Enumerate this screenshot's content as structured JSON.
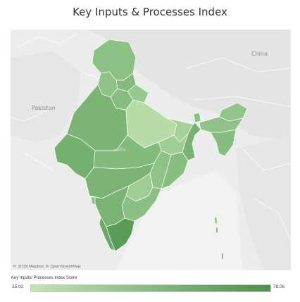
{
  "title": "Key Inputs & Processes Index",
  "map": {
    "labels": {
      "china": "China",
      "pakistan": "Pakistan",
      "india_ghost": "India"
    },
    "attribution": "© 2019 Mapbox © OpenStreetMap",
    "colors": {
      "background": "#ececec",
      "neighbor_land": "#e3e3e3",
      "border": "#ffffff",
      "water": "#f4f4f4"
    },
    "regions": [
      {
        "name": "Jammu & Kashmir",
        "score": 58,
        "color": "#8cc185"
      },
      {
        "name": "Himachal Pradesh",
        "score": 62,
        "color": "#84bb7c"
      },
      {
        "name": "Punjab",
        "score": 55,
        "color": "#8fc287"
      },
      {
        "name": "Uttarakhand",
        "score": 50,
        "color": "#97c88f"
      },
      {
        "name": "Haryana",
        "score": 60,
        "color": "#87bd80"
      },
      {
        "name": "Rajasthan",
        "score": 65,
        "color": "#7cb476"
      },
      {
        "name": "Uttar Pradesh",
        "score": 28,
        "color": "#b7dca7"
      },
      {
        "name": "Bihar",
        "score": 40,
        "color": "#a5d198"
      },
      {
        "name": "Sikkim",
        "score": 58,
        "color": "#8bc084"
      },
      {
        "name": "Arunachal Pradesh",
        "score": 52,
        "color": "#92c58a"
      },
      {
        "name": "Assam",
        "score": 55,
        "color": "#8fc287"
      },
      {
        "name": "North-East States",
        "score": 60,
        "color": "#86bc7f"
      },
      {
        "name": "West Bengal",
        "score": 66,
        "color": "#79b373"
      },
      {
        "name": "Jharkhand",
        "score": 45,
        "color": "#9fcd93"
      },
      {
        "name": "Gujarat",
        "score": 68,
        "color": "#76b070"
      },
      {
        "name": "Madhya Pradesh",
        "score": 62,
        "color": "#83bb7c"
      },
      {
        "name": "Chhattisgarh",
        "score": 55,
        "color": "#8ec286"
      },
      {
        "name": "Odisha",
        "score": 60,
        "color": "#88bd80"
      },
      {
        "name": "Maharashtra",
        "score": 66,
        "color": "#7ab374"
      },
      {
        "name": "Telangana",
        "score": 45,
        "color": "#a0cd94"
      },
      {
        "name": "Andhra Pradesh",
        "score": 58,
        "color": "#8bc084"
      },
      {
        "name": "Karnataka",
        "score": 66,
        "color": "#7ab374"
      },
      {
        "name": "Goa",
        "score": 58,
        "color": "#8bc084"
      },
      {
        "name": "Kerala",
        "score": 72,
        "color": "#6da767"
      },
      {
        "name": "Tamil Nadu",
        "score": 78.06,
        "color": "#5b9b58"
      }
    ]
  },
  "legend": {
    "title": "Key Inputs/ Processes Index Score",
    "min": "25.02",
    "max": "78.06",
    "color_low": "#c3e3b6",
    "color_high": "#4f8e4f"
  }
}
